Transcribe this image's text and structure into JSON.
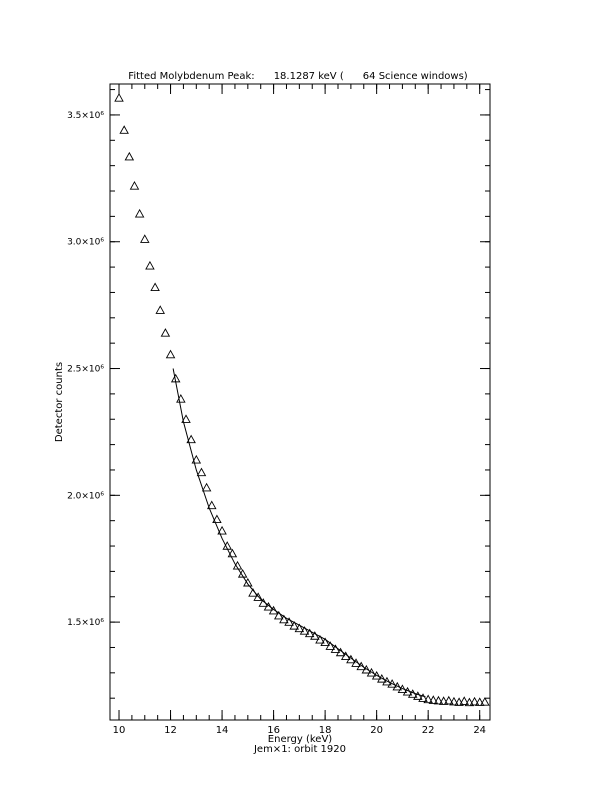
{
  "chart_data": {
    "type": "scatter",
    "title": "Fitted Molybdenum Peak:      18.1287 keV (      64 Science windows)",
    "x_label": "Energy (keV)",
    "subtitle": "Jem×1: orbit 1920",
    "y_label": "Detector counts",
    "xlim": [
      9.65,
      24.4
    ],
    "ylim": [
      1114000,
      3622000
    ],
    "xticks": [
      10,
      12,
      14,
      16,
      18,
      20,
      22,
      24
    ],
    "yticks": [
      {
        "value": 1500000,
        "label": "1.5×10⁶"
      },
      {
        "value": 2000000,
        "label": "2.0×10⁶"
      },
      {
        "value": 2500000,
        "label": "2.5×10⁶"
      },
      {
        "value": 3000000,
        "label": "3.0×10⁶"
      },
      {
        "value": 3500000,
        "label": "3.5×10⁶"
      }
    ],
    "series": [
      {
        "marker": "triangle",
        "color": "#000000",
        "x": [
          10.0,
          10.2,
          10.4,
          10.6,
          10.8,
          11.0,
          11.2,
          11.4,
          11.6,
          11.8,
          12.0,
          12.2,
          12.4,
          12.6,
          12.8,
          13.0,
          13.2,
          13.4,
          13.6,
          13.8,
          14.0,
          14.2,
          14.4,
          14.6,
          14.8,
          15.0,
          15.2,
          15.4,
          15.6,
          15.8,
          16.0,
          16.2,
          16.4,
          16.6,
          16.8,
          17.0,
          17.2,
          17.4,
          17.6,
          17.8,
          18.0,
          18.2,
          18.4,
          18.6,
          18.8,
          19.0,
          19.2,
          19.4,
          19.6,
          19.8,
          20.0,
          20.2,
          20.4,
          20.6,
          20.8,
          21.0,
          21.2,
          21.4,
          21.6,
          21.8,
          22.0,
          22.2,
          22.4,
          22.6,
          22.8,
          23.0,
          23.2,
          23.4,
          23.6,
          23.8,
          24.0,
          24.2
        ],
        "values": [
          3567000,
          3440000,
          3335000,
          3220000,
          3110000,
          3010000,
          2905000,
          2820000,
          2730000,
          2640000,
          2555000,
          2460000,
          2380000,
          2300000,
          2220000,
          2140000,
          2090000,
          2030000,
          1960000,
          1905000,
          1860000,
          1800000,
          1770000,
          1722000,
          1690000,
          1655000,
          1615000,
          1598000,
          1575000,
          1560000,
          1545000,
          1525000,
          1510000,
          1500000,
          1485000,
          1475000,
          1465000,
          1455000,
          1445000,
          1430000,
          1420000,
          1405000,
          1393000,
          1380000,
          1365000,
          1352000,
          1338000,
          1325000,
          1312000,
          1300000,
          1288000,
          1276000,
          1265000,
          1256000,
          1245000,
          1235000,
          1225000,
          1216000,
          1208000,
          1200000,
          1195000,
          1192000,
          1190000,
          1188000,
          1190000,
          1186000,
          1184000,
          1188000,
          1183000,
          1186000,
          1184000,
          1185000
        ]
      },
      {
        "marker": "line",
        "color": "#000000",
        "x": [
          12.1,
          12.5,
          13.0,
          13.5,
          14.0,
          14.5,
          15.0,
          15.5,
          16.0,
          16.5,
          17.0,
          17.5,
          18.0,
          18.5,
          19.0,
          19.5,
          20.0,
          20.5,
          21.0,
          21.5,
          21.9
        ],
        "values": [
          2500000,
          2290000,
          2100000,
          1950000,
          1830000,
          1730000,
          1650000,
          1590000,
          1550000,
          1515000,
          1488000,
          1460000,
          1432000,
          1395000,
          1358000,
          1322000,
          1290000,
          1262000,
          1238000,
          1218000,
          1205000
        ]
      }
    ]
  }
}
